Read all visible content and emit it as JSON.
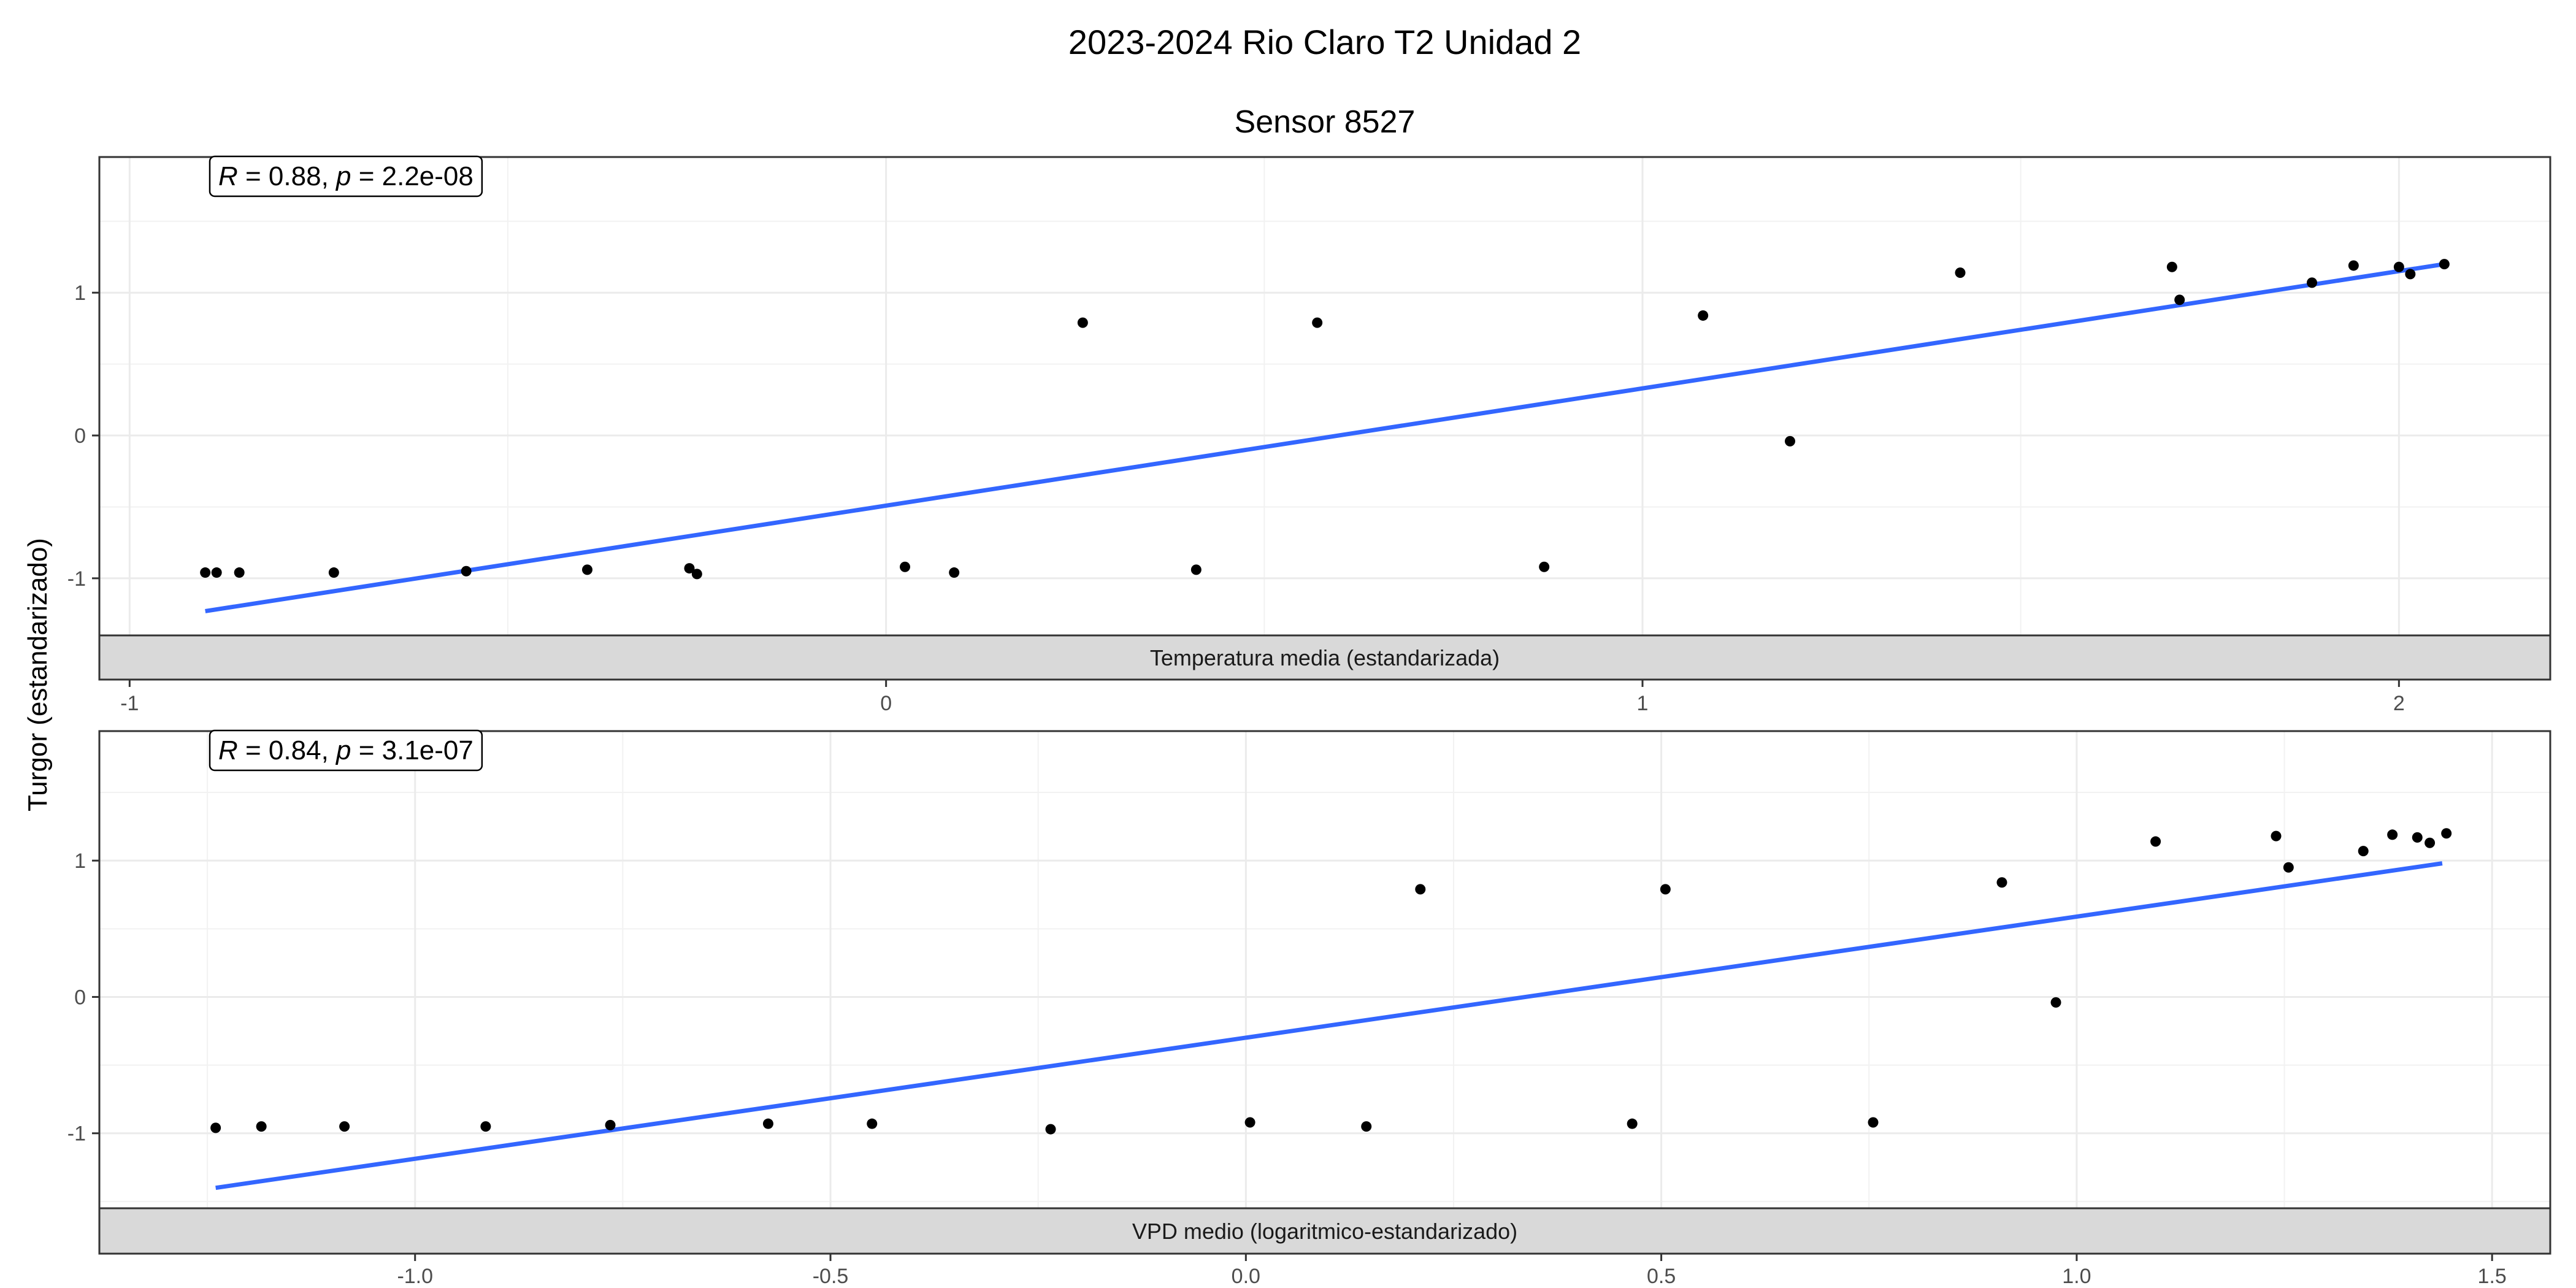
{
  "figure": {
    "title": "2023-2024 Rio Claro T2 Unidad 2",
    "subtitle": "Sensor 8527",
    "ylabel": "Turgor (estandarizado)"
  },
  "chart_data": [
    {
      "type": "scatter",
      "panel_label": "Temperatura media (estandarizada)",
      "annotation": {
        "r_label": "R",
        "r_text": " = 0.88, ",
        "p_label": "p",
        "p_text": " = 2.2e-08"
      },
      "xlim": [
        -1.04,
        2.2
      ],
      "ylim": [
        -1.4,
        1.95
      ],
      "x_ticks": [
        -1,
        0,
        1,
        2
      ],
      "x_tick_labels": [
        "-1",
        "0",
        "1",
        "2"
      ],
      "y_ticks": [
        -1,
        0,
        1
      ],
      "y_tick_labels": [
        "-1",
        "0",
        "1"
      ],
      "grid": true,
      "trend_line": {
        "color": "#3366FF",
        "x": [
          -0.9,
          2.06
        ],
        "y": [
          -1.23,
          1.2
        ]
      },
      "points": {
        "x": [
          -0.9,
          -0.885,
          -0.855,
          -0.73,
          -0.555,
          -0.395,
          -0.26,
          -0.25,
          0.025,
          0.09,
          0.26,
          0.41,
          0.57,
          0.87,
          1.08,
          1.195,
          1.42,
          1.7,
          1.71,
          1.885,
          1.94,
          2.0,
          2.015,
          2.06
        ],
        "y": [
          -0.96,
          -0.96,
          -0.96,
          -0.96,
          -0.95,
          -0.94,
          -0.93,
          -0.97,
          -0.92,
          -0.96,
          0.79,
          -0.94,
          0.79,
          -0.92,
          0.84,
          -0.04,
          1.14,
          1.18,
          0.95,
          1.07,
          1.19,
          1.18,
          1.13,
          1.2
        ]
      }
    },
    {
      "type": "scatter",
      "panel_label": "VPD medio (logaritmico-estandarizado)",
      "annotation": {
        "r_label": "R",
        "r_text": " = 0.84, ",
        "p_label": "p",
        "p_text": " = 3.1e-07"
      },
      "xlim": [
        -1.38,
        1.57
      ],
      "ylim": [
        -1.55,
        1.95
      ],
      "x_ticks": [
        -1.0,
        -0.5,
        0.0,
        0.5,
        1.0,
        1.5
      ],
      "x_tick_labels": [
        "-1.0",
        "-0.5",
        "0.0",
        "0.5",
        "1.0",
        "1.5"
      ],
      "y_ticks": [
        -1,
        0,
        1
      ],
      "y_tick_labels": [
        "-1",
        "0",
        "1"
      ],
      "grid": true,
      "trend_line": {
        "color": "#3366FF",
        "x": [
          -1.24,
          1.44
        ],
        "y": [
          -1.4,
          0.98
        ]
      },
      "points": {
        "x": [
          -1.24,
          -1.185,
          -1.085,
          -0.915,
          -0.765,
          -0.575,
          -0.45,
          -0.235,
          0.005,
          0.145,
          0.21,
          0.465,
          0.505,
          0.755,
          0.91,
          0.975,
          1.095,
          1.24,
          1.255,
          1.345,
          1.38,
          1.41,
          1.425,
          1.445
        ],
        "y": [
          -0.96,
          -0.95,
          -0.95,
          -0.95,
          -0.94,
          -0.93,
          -0.93,
          -0.97,
          -0.92,
          -0.95,
          0.79,
          -0.93,
          0.79,
          -0.92,
          0.84,
          -0.04,
          1.14,
          1.18,
          0.95,
          1.07,
          1.19,
          1.17,
          1.13,
          1.2
        ]
      }
    }
  ]
}
